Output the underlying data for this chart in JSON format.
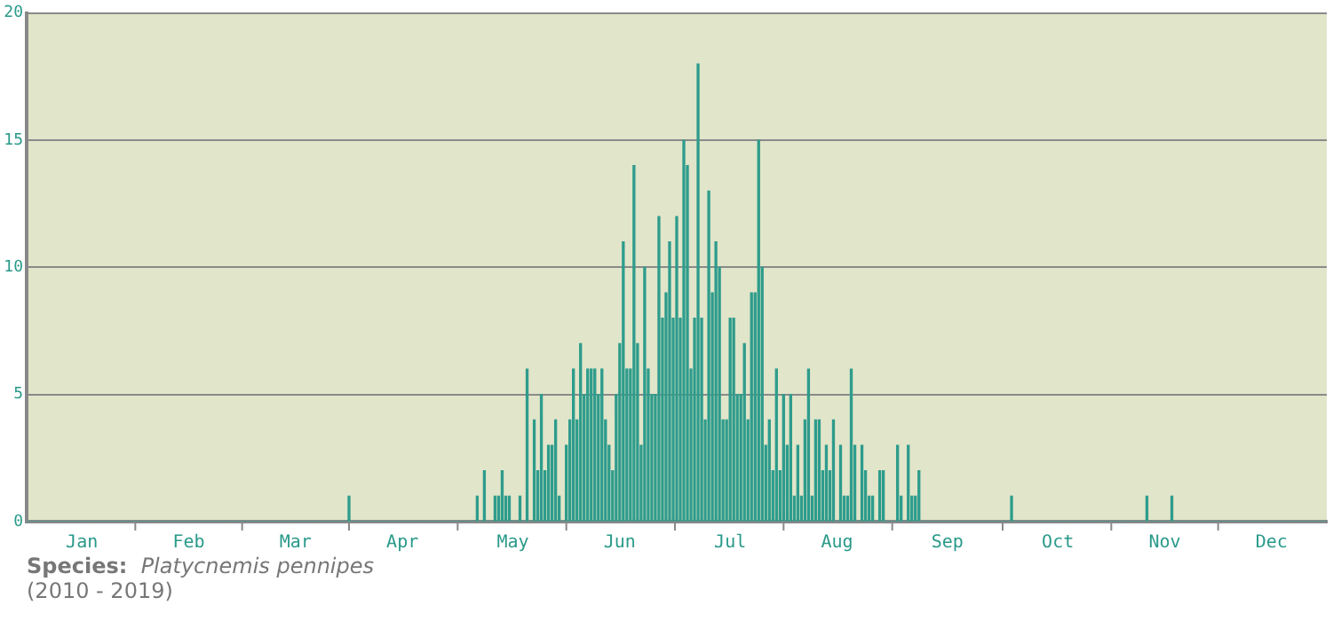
{
  "chart_data": {
    "type": "bar",
    "categories": [
      null,
      null,
      null,
      null,
      null,
      null,
      null,
      null,
      null,
      null,
      null,
      null,
      null,
      null,
      null,
      "Jan",
      null,
      null,
      null,
      null,
      null,
      null,
      null,
      null,
      null,
      null,
      null,
      null,
      null,
      null,
      null,
      null,
      null,
      null,
      null,
      null,
      null,
      null,
      null,
      null,
      null,
      null,
      null,
      null,
      null,
      "Feb",
      null,
      null,
      null,
      null,
      null,
      null,
      null,
      null,
      null,
      null,
      null,
      null,
      null,
      null,
      null,
      null,
      null,
      null,
      null,
      null,
      null,
      null,
      null,
      null,
      null,
      null,
      null,
      null,
      null,
      "Mar",
      null,
      null,
      null,
      null,
      null,
      null,
      null,
      null,
      null,
      null,
      null,
      null,
      null,
      null,
      null,
      null,
      null,
      null,
      null,
      null,
      null,
      null,
      null,
      null,
      null,
      null,
      null,
      null,
      null,
      "Apr",
      null,
      null,
      null,
      null,
      null,
      null,
      null,
      null,
      null,
      null,
      null,
      null,
      null,
      null,
      null,
      null,
      null,
      null,
      null,
      null,
      null,
      null,
      null,
      null,
      null,
      null,
      null,
      null,
      null,
      null,
      "May",
      null,
      null,
      null,
      null,
      null,
      null,
      null,
      null,
      null,
      null,
      null,
      null,
      null,
      null,
      null,
      null,
      null,
      null,
      null,
      null,
      null,
      null,
      null,
      null,
      null,
      null,
      null,
      null,
      null,
      "Jun",
      null,
      null,
      null,
      null,
      null,
      null,
      null,
      null,
      null,
      null,
      null,
      null,
      null,
      null,
      null,
      null,
      null,
      null,
      null,
      null,
      null,
      null,
      null,
      null,
      null,
      null,
      null,
      null,
      null,
      null,
      "Jul",
      null,
      null,
      null,
      null,
      null,
      null,
      null,
      null,
      null,
      null,
      null,
      null,
      null,
      null,
      null,
      null,
      null,
      null,
      null,
      null,
      null,
      null,
      null,
      null,
      null,
      null,
      null,
      null,
      null,
      "Aug",
      null,
      null,
      null,
      null,
      null,
      null,
      null,
      null,
      null,
      null,
      null,
      null,
      null,
      null,
      null,
      null,
      null,
      null,
      null,
      null,
      null,
      null,
      null,
      null,
      null,
      null,
      null,
      null,
      null,
      null,
      "Sep",
      null,
      null,
      null,
      null,
      null,
      null,
      null,
      null,
      null,
      null,
      null,
      null,
      null,
      null,
      null,
      null,
      null,
      null,
      null,
      null,
      null,
      null,
      null,
      null,
      null,
      null,
      null,
      null,
      null,
      null,
      "Oct",
      null,
      null,
      null,
      null,
      null,
      null,
      null,
      null,
      null,
      null,
      null,
      null,
      null,
      null,
      null,
      null,
      null,
      null,
      null,
      null,
      null,
      null,
      null,
      null,
      null,
      null,
      null,
      null,
      null,
      "Nov",
      null,
      null,
      null,
      null,
      null,
      null,
      null,
      null,
      null,
      null,
      null,
      null,
      null,
      null,
      null,
      null,
      null,
      null,
      null,
      null,
      null,
      null,
      null,
      null,
      null,
      null,
      null,
      null,
      null,
      "Dec",
      null,
      null,
      null,
      null,
      null,
      null,
      null,
      null,
      null,
      null,
      null,
      null,
      null,
      null,
      null
    ],
    "values": [
      0,
      0,
      0,
      0,
      0,
      0,
      0,
      0,
      0,
      0,
      0,
      0,
      0,
      0,
      0,
      0,
      0,
      0,
      0,
      0,
      0,
      0,
      0,
      0,
      0,
      0,
      0,
      0,
      0,
      0,
      0,
      0,
      0,
      0,
      0,
      0,
      0,
      0,
      0,
      0,
      0,
      0,
      0,
      0,
      0,
      0,
      0,
      0,
      0,
      0,
      0,
      0,
      0,
      0,
      0,
      0,
      0,
      0,
      0,
      0,
      0,
      0,
      0,
      0,
      0,
      0,
      0,
      0,
      0,
      0,
      0,
      0,
      0,
      0,
      0,
      0,
      0,
      0,
      0,
      0,
      0,
      0,
      0,
      0,
      0,
      0,
      0,
      0,
      0,
      0,
      1,
      0,
      0,
      0,
      0,
      0,
      0,
      0,
      0,
      0,
      0,
      0,
      0,
      0,
      0,
      0,
      0,
      0,
      0,
      0,
      0,
      0,
      0,
      0,
      0,
      0,
      0,
      0,
      0,
      0,
      0,
      0,
      0,
      0,
      0,
      0,
      1,
      0,
      2,
      0,
      0,
      1,
      1,
      2,
      1,
      1,
      0,
      0,
      1,
      0,
      6,
      0,
      4,
      2,
      5,
      2,
      3,
      3,
      4,
      1,
      0,
      3,
      4,
      6,
      4,
      7,
      5,
      6,
      6,
      6,
      5,
      6,
      4,
      3,
      2,
      5,
      7,
      11,
      6,
      6,
      14,
      7,
      3,
      10,
      6,
      5,
      5,
      12,
      8,
      9,
      11,
      8,
      12,
      8,
      15,
      14,
      6,
      8,
      18,
      8,
      4,
      13,
      9,
      11,
      10,
      4,
      4,
      8,
      8,
      5,
      5,
      7,
      4,
      9,
      9,
      15,
      10,
      3,
      4,
      2,
      6,
      2,
      5,
      3,
      5,
      1,
      3,
      1,
      4,
      6,
      1,
      4,
      4,
      2,
      3,
      2,
      4,
      0,
      3,
      1,
      1,
      6,
      3,
      0,
      3,
      2,
      1,
      1,
      0,
      2,
      2,
      0,
      0,
      0,
      3,
      1,
      0,
      3,
      1,
      1,
      2,
      0,
      0,
      0,
      0,
      0,
      0,
      0,
      0,
      0,
      0,
      0,
      0,
      0,
      0,
      0,
      0,
      0,
      0,
      0,
      0,
      0,
      0,
      0,
      0,
      0,
      1,
      0,
      0,
      0,
      0,
      0,
      0,
      0,
      0,
      0,
      0,
      0,
      0,
      0,
      0,
      0,
      0,
      0,
      0,
      0,
      0,
      0,
      0,
      0,
      0,
      0,
      0,
      0,
      0,
      0,
      0,
      0,
      0,
      0,
      0,
      0,
      0,
      0,
      1,
      0,
      0,
      0,
      0,
      0,
      0,
      1,
      0,
      0,
      0,
      0,
      0,
      0,
      0,
      0,
      0,
      0,
      0,
      0,
      0,
      0,
      0,
      0,
      0,
      0,
      0,
      0,
      0,
      0,
      0,
      0,
      0,
      0,
      0,
      0,
      0,
      0,
      0,
      0,
      0,
      0,
      0,
      0,
      0,
      0,
      0,
      0,
      0,
      0,
      0
    ],
    "color": "#2e9c8c",
    "ylim": [
      0,
      20
    ],
    "yticks": [
      0,
      5,
      10,
      15,
      20
    ],
    "grid": "y",
    "annotations": [
      "Species: Platycnemis pennipes",
      "(2010 - 2019)"
    ]
  }
}
